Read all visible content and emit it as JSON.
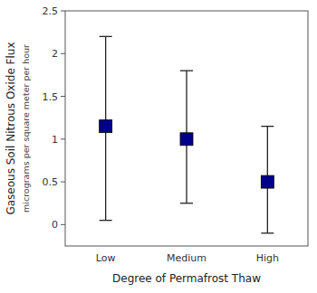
{
  "chart_data": {
    "type": "errorbar",
    "categories": [
      "Low",
      "Medium",
      "High"
    ],
    "values": [
      1.15,
      1.0,
      0.5
    ],
    "upper_errors": [
      1.05,
      0.8,
      0.65
    ],
    "lower_errors": [
      1.1,
      0.75,
      0.6
    ],
    "ylim": [
      -0.25,
      2.5
    ],
    "yticks": [
      0.0,
      0.5,
      1.0,
      1.5,
      2.0,
      2.5
    ],
    "color": "#00008B",
    "marker": "square",
    "grid": false,
    "xlabel": "Degree of Permafrost Thaw",
    "ylabel": "Gaseous Soil Nitrous Oxide Flux",
    "ylabel_sub": "micrograms per square meter per hour"
  }
}
